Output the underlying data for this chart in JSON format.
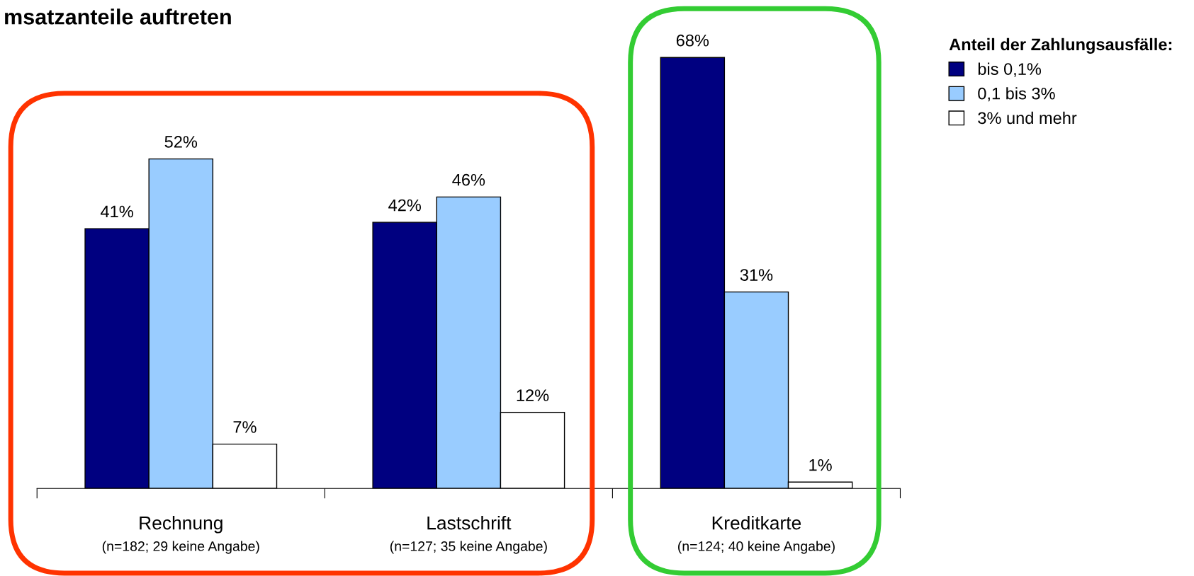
{
  "chart_data": {
    "type": "bar",
    "title": "msatzanteile auftreten",
    "categories": [
      "Rechnung\n(n=182; 29 keine Angabe)",
      "Lastschrift\n(n=127; 35 keine Angabe)",
      "Kreditkarte\n(n=124; 40 keine Angabe)"
    ],
    "series": [
      {
        "name": "bis 0,1%",
        "color": "#000080",
        "values": [
          41,
          42,
          68
        ],
        "value_labels": [
          "41%",
          "42%",
          "68%"
        ]
      },
      {
        "name": "0,1 bis 3%",
        "color": "#99ccff",
        "values": [
          52,
          46,
          31
        ],
        "value_labels": [
          "52%",
          "46%",
          "31%"
        ]
      },
      {
        "name": "3% und mehr",
        "color": "#ffffff",
        "values": [
          7,
          12,
          1
        ],
        "value_labels": [
          "7%",
          "12%",
          "1%"
        ]
      }
    ],
    "legend_title": "Anteil der Zahlungsausfälle:",
    "legend": "top right",
    "tick_labels": "x",
    "grid": false
  }
}
